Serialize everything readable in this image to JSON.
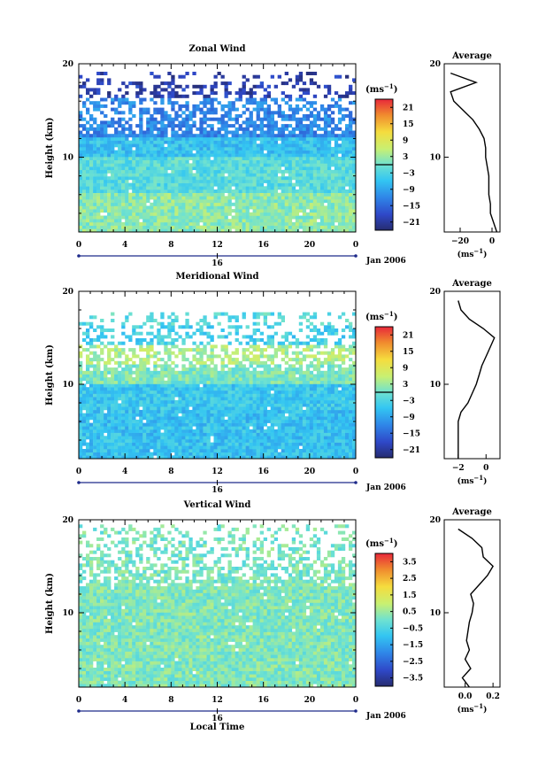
{
  "chart_data": [
    {
      "type": "heatmap",
      "title": "Zonal Wind",
      "xlabel": "",
      "ylabel": "Height (km)",
      "x_ticks": [
        "0",
        "4",
        "8",
        "12",
        "16",
        "20",
        "0"
      ],
      "xlim": [
        0,
        24
      ],
      "y_ticks": [
        "10",
        "20"
      ],
      "ylim": [
        2,
        20
      ],
      "day_label": "16",
      "date_label": "Jan 2006",
      "colorbar": {
        "unit": "(ms",
        "unit_exp": "−1",
        "unit_close": ")",
        "ticks": [
          "21",
          "15",
          "9",
          "3",
          "−3",
          "−9",
          "−15",
          "−21"
        ],
        "range": [
          -24,
          24
        ],
        "zero_line": 0
      },
      "data_top_km": 19,
      "base_value": 4,
      "regimes": [
        {
          "from": 2,
          "to": 6,
          "value": 2
        },
        {
          "from": 6,
          "to": 10,
          "value": -2
        },
        {
          "from": 10,
          "to": 12,
          "value": -6
        },
        {
          "from": 12,
          "to": 16,
          "value": -12
        },
        {
          "from": 16,
          "to": 19,
          "value": -20
        }
      ],
      "average": {
        "title": "Average",
        "xlabel": "(ms",
        "xlabel_exp": "−1",
        "xlabel_close": ")",
        "x_ticks": [
          "−20",
          "0"
        ],
        "xlim": [
          -30,
          5
        ],
        "heights": [
          2,
          3,
          4,
          5,
          6,
          7,
          8,
          9,
          10,
          11,
          12,
          13,
          14,
          15,
          16,
          17,
          18,
          19
        ],
        "values": [
          3,
          1,
          -1,
          -1,
          -2,
          -2,
          -2,
          -3,
          -4,
          -4,
          -5,
          -8,
          -12,
          -18,
          -24,
          -26,
          -10,
          -26
        ]
      }
    },
    {
      "type": "heatmap",
      "title": "Meridional Wind",
      "xlabel": "",
      "ylabel": "Height (km)",
      "x_ticks": [
        "0",
        "4",
        "8",
        "12",
        "16",
        "20",
        "0"
      ],
      "xlim": [
        0,
        24
      ],
      "y_ticks": [
        "10",
        "20"
      ],
      "ylim": [
        2,
        20
      ],
      "day_label": "16",
      "date_label": "Jan 2006",
      "colorbar": {
        "unit": "(ms",
        "unit_exp": "−1",
        "unit_close": ")",
        "ticks": [
          "21",
          "15",
          "9",
          "3",
          "−3",
          "−9",
          "−15",
          "−21"
        ],
        "range": [
          -24,
          24
        ],
        "zero_line": 0
      },
      "data_top_km": 17.5,
      "base_value": -4,
      "regimes": [
        {
          "from": 2,
          "to": 7,
          "value": -6
        },
        {
          "from": 7,
          "to": 10,
          "value": -5
        },
        {
          "from": 10,
          "to": 12,
          "value": 1
        },
        {
          "from": 12,
          "to": 14,
          "value": 4
        },
        {
          "from": 16,
          "to": 17.5,
          "value": -2
        }
      ],
      "average": {
        "title": "Average",
        "xlabel": "(ms",
        "xlabel_exp": "−1",
        "xlabel_close": ")",
        "x_ticks": [
          "−2",
          "0"
        ],
        "xlim": [
          -3,
          1
        ],
        "heights": [
          2,
          3,
          4,
          5,
          6,
          7,
          8,
          9,
          10,
          11,
          12,
          13,
          14,
          15,
          16,
          17,
          18,
          19
        ],
        "values": [
          -2,
          -2,
          -2,
          -2,
          -2,
          -1.8,
          -1.3,
          -1,
          -0.7,
          -0.5,
          -0.3,
          0,
          0.3,
          0.6,
          -0.2,
          -1.2,
          -1.8,
          -2
        ]
      }
    },
    {
      "type": "heatmap",
      "title": "Vertical Wind",
      "xlabel": "Local Time",
      "ylabel": "Height (km)",
      "x_ticks": [
        "0",
        "4",
        "8",
        "12",
        "16",
        "20",
        "0"
      ],
      "xlim": [
        0,
        24
      ],
      "y_ticks": [
        "10",
        "20"
      ],
      "ylim": [
        2,
        20
      ],
      "day_label": "16",
      "date_label": "Jan 2006",
      "colorbar": {
        "unit": "(ms",
        "unit_exp": "−1",
        "unit_close": ")",
        "ticks": [
          "3.5",
          "2.5",
          "1.5",
          "0.5",
          "−0.5",
          "−1.5",
          "−2.5",
          "−3.5"
        ],
        "range": [
          -4,
          4
        ],
        "zero_line": null
      },
      "data_top_km": 19.5,
      "base_value": 0.1,
      "regimes": [
        {
          "from": 2,
          "to": 13,
          "value": 0.2
        },
        {
          "from": 16,
          "to": 19.5,
          "value": 0.1
        }
      ],
      "average": {
        "title": "Average",
        "xlabel": "(ms",
        "xlabel_exp": "−1",
        "xlabel_close": ")",
        "x_ticks": [
          "0.0",
          "0.2"
        ],
        "xlim": [
          -0.15,
          0.25
        ],
        "heights": [
          2,
          3,
          4,
          5,
          6,
          7,
          8,
          9,
          10,
          11,
          12,
          13,
          14,
          15,
          16,
          17,
          18,
          19
        ],
        "values": [
          0.03,
          -0.02,
          0.04,
          0.0,
          0.03,
          0.01,
          0.02,
          0.03,
          0.05,
          0.06,
          0.04,
          0.1,
          0.16,
          0.2,
          0.13,
          0.12,
          0.05,
          -0.05
        ]
      }
    }
  ]
}
